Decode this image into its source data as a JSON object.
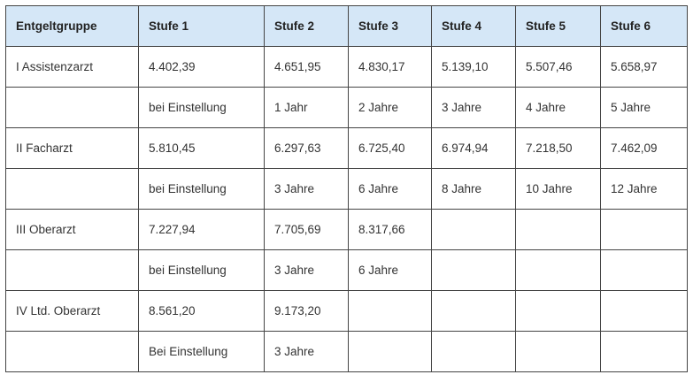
{
  "table": {
    "header": [
      "Entgeltgruppe",
      "Stufe 1",
      "Stufe 2",
      "Stufe 3",
      "Stufe 4",
      "Stufe 5",
      "Stufe 6"
    ],
    "rows": [
      [
        "I Assistenzarzt",
        "4.402,39",
        "4.651,95",
        "4.830,17",
        "5.139,10",
        "5.507,46",
        "5.658,97"
      ],
      [
        null,
        "bei Einstellung",
        "1 Jahr",
        "2 Jahre",
        "3 Jahre",
        "4 Jahre",
        "5 Jahre"
      ],
      [
        "II Facharzt",
        "5.810,45",
        "6.297,63",
        "6.725,40",
        "6.974,94",
        "7.218,50",
        "7.462,09"
      ],
      [
        null,
        "bei Einstellung",
        "3 Jahre",
        "6 Jahre",
        "8 Jahre",
        "10 Jahre",
        "12 Jahre"
      ],
      [
        "III Oberarzt",
        "7.227,94",
        "7.705,69",
        "8.317,66",
        null,
        null,
        null
      ],
      [
        null,
        "bei Einstellung",
        "3 Jahre",
        "6 Jahre",
        null,
        null,
        null
      ],
      [
        "IV Ltd. Oberarzt",
        "8.561,20",
        "9.173,20",
        null,
        null,
        null,
        null
      ],
      [
        null,
        "Bei Einstellung",
        "3 Jahre",
        null,
        null,
        null,
        null
      ]
    ]
  }
}
